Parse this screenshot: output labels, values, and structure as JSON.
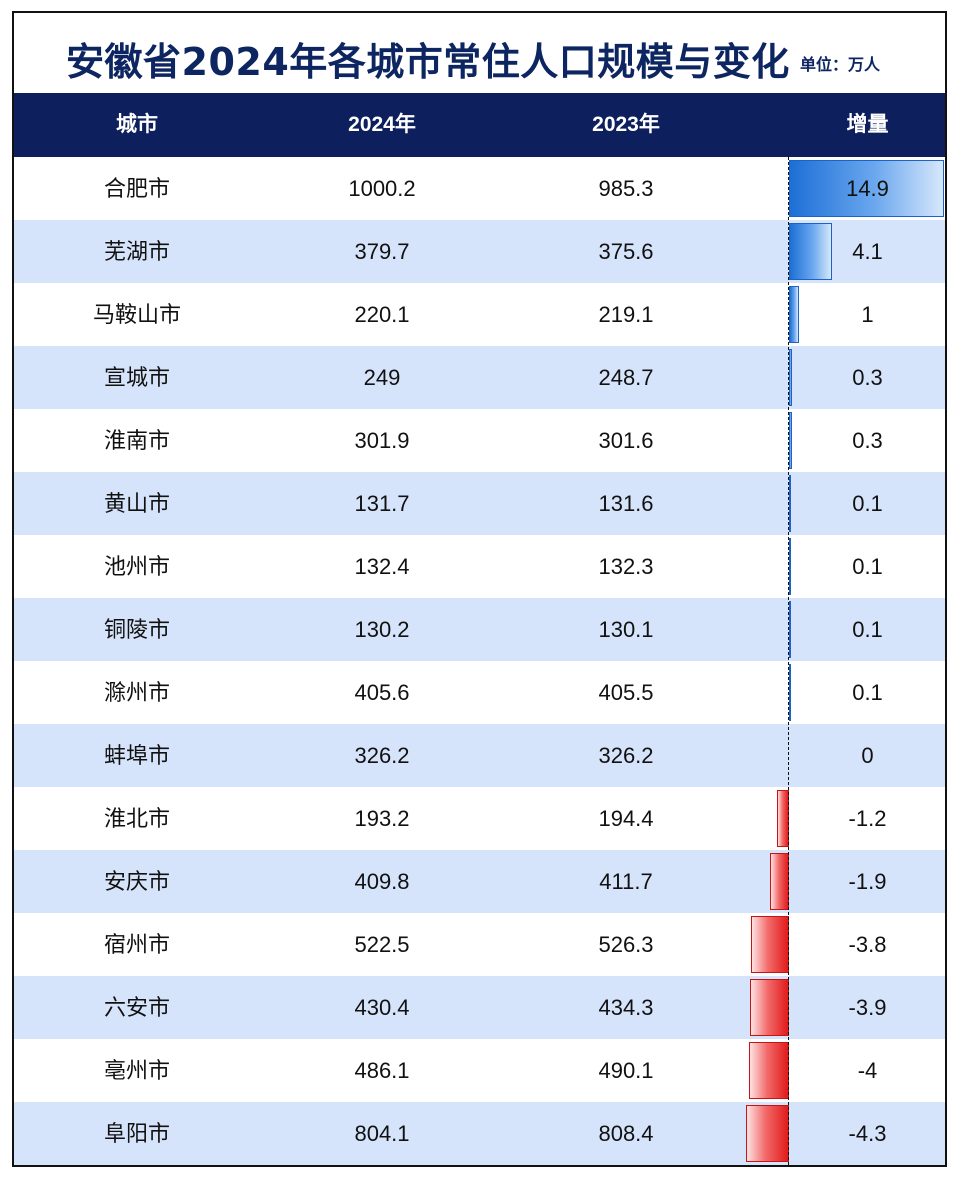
{
  "title": "安徽省2024年各城市常住人口规模与变化",
  "unit": "单位：万人",
  "header": {
    "city": "城市",
    "y2024": "2024年",
    "y2023": "2023年",
    "increase": "增量"
  },
  "colors": {
    "title": "#0d2560",
    "header_bg": "#0d1f5c",
    "row_alt": "#d6e4fb",
    "positive": "#1d6fd6",
    "negative": "#e11b1b"
  },
  "chart_data": {
    "type": "table",
    "columns": [
      "城市",
      "2024年",
      "2023年",
      "增量"
    ],
    "rows": [
      {
        "city": "合肥市",
        "y2024": "1000.2",
        "y2023": "985.3",
        "increase": "14.9"
      },
      {
        "city": "芜湖市",
        "y2024": "379.7",
        "y2023": "375.6",
        "increase": "4.1"
      },
      {
        "city": "马鞍山市",
        "y2024": "220.1",
        "y2023": "219.1",
        "increase": "1"
      },
      {
        "city": "宣城市",
        "y2024": "249",
        "y2023": "248.7",
        "increase": "0.3"
      },
      {
        "city": "淮南市",
        "y2024": "301.9",
        "y2023": "301.6",
        "increase": "0.3"
      },
      {
        "city": "黄山市",
        "y2024": "131.7",
        "y2023": "131.6",
        "increase": "0.1"
      },
      {
        "city": "池州市",
        "y2024": "132.4",
        "y2023": "132.3",
        "increase": "0.1"
      },
      {
        "city": "铜陵市",
        "y2024": "130.2",
        "y2023": "130.1",
        "increase": "0.1"
      },
      {
        "city": "滁州市",
        "y2024": "405.6",
        "y2023": "405.5",
        "increase": "0.1"
      },
      {
        "city": "蚌埠市",
        "y2024": "326.2",
        "y2023": "326.2",
        "increase": "0"
      },
      {
        "city": "淮北市",
        "y2024": "193.2",
        "y2023": "194.4",
        "increase": "-1.2"
      },
      {
        "city": "安庆市",
        "y2024": "409.8",
        "y2023": "411.7",
        "increase": "-1.9"
      },
      {
        "city": "宿州市",
        "y2024": "522.5",
        "y2023": "526.3",
        "increase": "-3.8"
      },
      {
        "city": "六安市",
        "y2024": "430.4",
        "y2023": "434.3",
        "increase": "-3.9"
      },
      {
        "city": "亳州市",
        "y2024": "486.1",
        "y2023": "490.1",
        "increase": "-4"
      },
      {
        "city": "阜阳市",
        "y2024": "804.1",
        "y2023": "808.4",
        "increase": "-4.3"
      }
    ]
  }
}
